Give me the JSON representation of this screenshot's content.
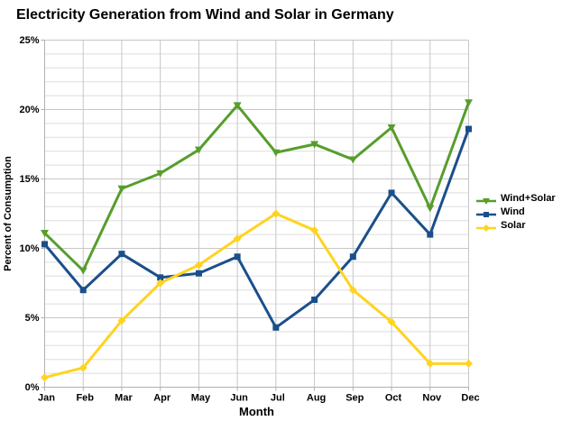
{
  "title": "Electricity Generation from Wind and Solar in Germany",
  "chart_data": {
    "type": "line",
    "title": "Electricity Generation from Wind and Solar in Germany",
    "xlabel": "Month",
    "ylabel": "Percent of Consumption",
    "categories": [
      "Jan",
      "Feb",
      "Mar",
      "Apr",
      "May",
      "Jun",
      "Jul",
      "Aug",
      "Sep",
      "Oct",
      "Nov",
      "Dec"
    ],
    "series": [
      {
        "name": "Wind+Solar",
        "color": "#579D2C",
        "marker": "triangle-down",
        "values": [
          11.1,
          8.4,
          14.3,
          15.4,
          17.1,
          20.3,
          16.9,
          17.5,
          16.4,
          18.7,
          12.9,
          20.5
        ]
      },
      {
        "name": "Wind",
        "color": "#1A4F8B",
        "marker": "square",
        "values": [
          10.3,
          7.0,
          9.6,
          7.9,
          8.2,
          9.4,
          4.3,
          6.3,
          9.4,
          14.0,
          11.0,
          18.6
        ]
      },
      {
        "name": "Solar",
        "color": "#FFD320",
        "marker": "diamond",
        "values": [
          0.7,
          1.4,
          4.8,
          7.5,
          8.8,
          10.7,
          12.5,
          11.3,
          7.0,
          4.7,
          1.7,
          1.7
        ]
      }
    ],
    "ylim": [
      0,
      25
    ],
    "y_major_step": 5,
    "y_minor_step": 1,
    "y_tick_suffix": "%",
    "grid": true,
    "legend_position": "right"
  },
  "style_colors": {
    "grid_minor": "#dedede",
    "grid_major": "#c6c6c6",
    "axis": "#b0b0b0",
    "text": "#000000",
    "background": "#ffffff"
  }
}
